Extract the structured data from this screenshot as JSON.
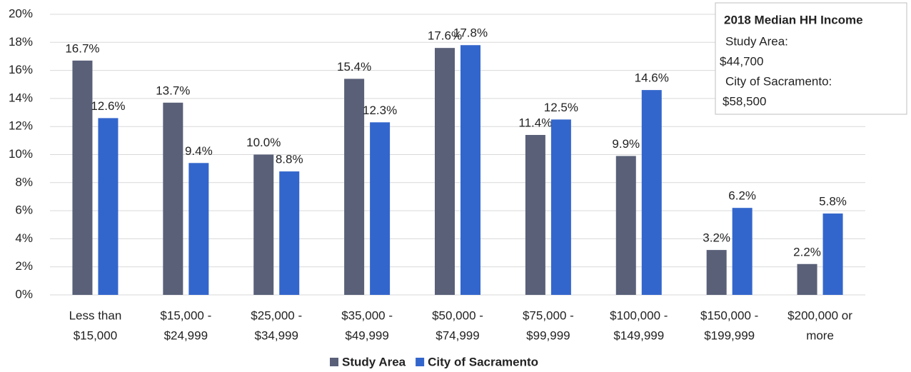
{
  "chart_data": {
    "type": "bar",
    "categories": [
      [
        "Less than",
        "$15,000"
      ],
      [
        "$15,000 -",
        "$24,999"
      ],
      [
        "$25,000 -",
        "$34,999"
      ],
      [
        "$35,000 -",
        "$49,999"
      ],
      [
        "$50,000 -",
        "$74,999"
      ],
      [
        "$75,000 -",
        "$99,999"
      ],
      [
        "$100,000 -",
        "$149,999"
      ],
      [
        "$150,000 -",
        "$199,999"
      ],
      [
        "$200,000 or",
        "more"
      ]
    ],
    "series": [
      {
        "name": "Study Area",
        "color": "#596078",
        "values": [
          16.7,
          13.7,
          10.0,
          15.4,
          17.6,
          11.4,
          9.9,
          3.2,
          2.2
        ],
        "value_labels": [
          "16.7%",
          "13.7%",
          "10.0%",
          "15.4%",
          "17.6%",
          "11.4%",
          "9.9%",
          "3.2%",
          "2.2%"
        ]
      },
      {
        "name": "City of Sacramento",
        "color": "#3366cc",
        "values": [
          12.6,
          9.4,
          8.8,
          12.3,
          17.8,
          12.5,
          14.6,
          6.2,
          5.8
        ],
        "value_labels": [
          "12.6%",
          "9.4%",
          "8.8%",
          "12.3%",
          "17.8%",
          "12.5%",
          "14.6%",
          "6.2%",
          "5.8%"
        ]
      }
    ],
    "ylim": [
      0,
      20
    ],
    "yticks": [
      {
        "value": 0,
        "label": "0%"
      },
      {
        "value": 2,
        "label": "2%"
      },
      {
        "value": 4,
        "label": "4%"
      },
      {
        "value": 6,
        "label": "6%"
      },
      {
        "value": 8,
        "label": "8%"
      },
      {
        "value": 10,
        "label": "10%"
      },
      {
        "value": 12,
        "label": "12%"
      },
      {
        "value": 14,
        "label": "14%"
      },
      {
        "value": 16,
        "label": "16%"
      },
      {
        "value": 18,
        "label": "18%"
      },
      {
        "value": 20,
        "label": "20%"
      }
    ],
    "grid": true,
    "legend": "bottom",
    "annotation": {
      "title": "2018 Median HH Income",
      "lines": [
        "Study Area:",
        "$44,700",
        "City of Sacramento:",
        "$58,500"
      ]
    }
  }
}
